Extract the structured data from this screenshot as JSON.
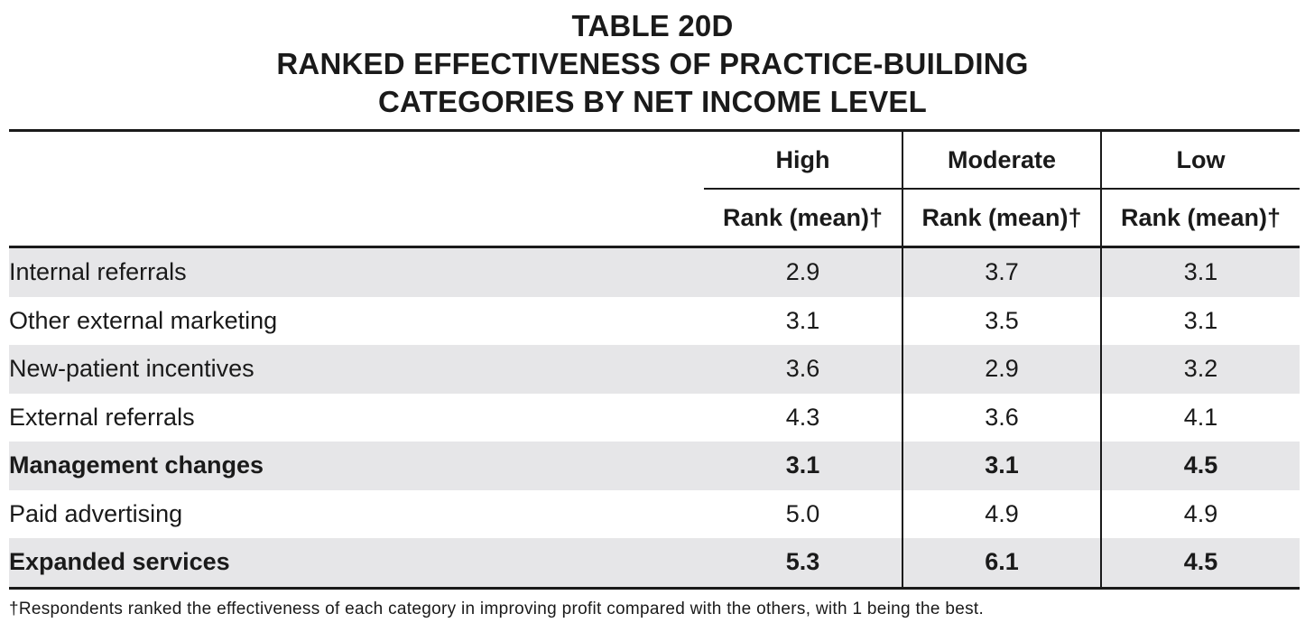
{
  "title": {
    "line1": "TABLE 20D",
    "line2": "RANKED EFFECTIVENESS OF PRACTICE-BUILDING",
    "line3": "CATEGORIES BY NET INCOME LEVEL"
  },
  "table": {
    "groups": [
      "High",
      "Moderate",
      "Low"
    ],
    "subheader": "Rank (mean)†",
    "rows": [
      {
        "label": "Internal referrals",
        "values": [
          "2.9",
          "3.7",
          "3.1"
        ],
        "bold": false
      },
      {
        "label": "Other external marketing",
        "values": [
          "3.1",
          "3.5",
          "3.1"
        ],
        "bold": false
      },
      {
        "label": "New-patient incentives",
        "values": [
          "3.6",
          "2.9",
          "3.2"
        ],
        "bold": false
      },
      {
        "label": "External referrals",
        "values": [
          "4.3",
          "3.6",
          "4.1"
        ],
        "bold": false
      },
      {
        "label": "Management changes",
        "values": [
          "3.1",
          "3.1",
          "4.5"
        ],
        "bold": true
      },
      {
        "label": "Paid advertising",
        "values": [
          "5.0",
          "4.9",
          "4.9"
        ],
        "bold": false
      },
      {
        "label": "Expanded services",
        "values": [
          "5.3",
          "6.1",
          "4.5"
        ],
        "bold": true
      }
    ]
  },
  "footnote": "†Respondents ranked the effectiveness of each category in improving profit compared with the others, with 1 being the best."
}
